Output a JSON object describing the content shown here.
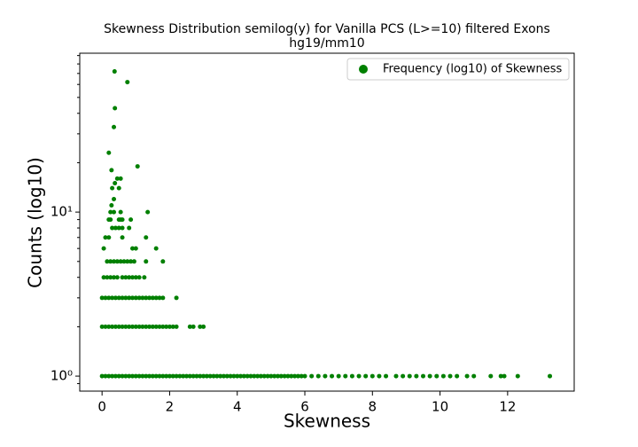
{
  "chart_data": {
    "type": "scatter",
    "title": "Skewness Distribution semilog(y) for Vanilla PCS (L>=10) filtered Exons",
    "subtitle": "hg19/mm10",
    "x_label": "Skewness",
    "y_label": "Counts (log10)",
    "y_scale": "log",
    "legend_position": "upper right",
    "xlim": [
      -0.66,
      13.97
    ],
    "xticks": [
      0,
      2,
      4,
      6,
      8,
      10,
      12
    ],
    "ylim": [
      0.81,
      93
    ],
    "yticks": [
      {
        "value": 1,
        "label": "10⁰"
      },
      {
        "value": 10,
        "label": "10¹"
      }
    ],
    "yminorticks": [
      0.9,
      2,
      3,
      4,
      5,
      6,
      7,
      8,
      9,
      20,
      30,
      40,
      50,
      60,
      70,
      80,
      90
    ],
    "series": [
      {
        "name": "Frequency (log10) of Skewness",
        "color": "#008000",
        "x": [
          0,
          0.1,
          0.2,
          0.3,
          0.4,
          0.5,
          0.6,
          0.7,
          0.8,
          0.9,
          1,
          1.1,
          1.2,
          1.3,
          1.4,
          1.5,
          1.6,
          1.7,
          1.8,
          1.9,
          2,
          2.1,
          2.2,
          2.3,
          2.4,
          2.5,
          2.6,
          2.7,
          2.8,
          2.9,
          3,
          3.1,
          3.2,
          3.3,
          3.4,
          3.5,
          3.6,
          3.7,
          3.8,
          3.9,
          4,
          4.1,
          4.2,
          4.3,
          4.4,
          4.5,
          4.6,
          4.7,
          4.8,
          4.9,
          5,
          5.1,
          5.2,
          5.3,
          5.4,
          5.5,
          5.6,
          5.7,
          5.8,
          5.9,
          6,
          6.2,
          6.4,
          6.6,
          6.8,
          7,
          7.2,
          7.4,
          7.6,
          7.8,
          8,
          8.2,
          8.4,
          8.7,
          8.9,
          9.1,
          9.3,
          9.5,
          9.7,
          9.9,
          10.1,
          10.3,
          10.5,
          10.8,
          11,
          11.5,
          11.8,
          11.9,
          12.3,
          13.25,
          0,
          0.1,
          0.2,
          0.3,
          0.4,
          0.5,
          0.6,
          0.7,
          0.8,
          0.9,
          1,
          1.1,
          1.2,
          1.3,
          1.4,
          1.5,
          1.6,
          1.7,
          1.8,
          1.9,
          2,
          2.1,
          2.2,
          2.6,
          2.7,
          2.9,
          3,
          0,
          0.1,
          0.2,
          0.3,
          0.4,
          0.5,
          0.6,
          0.7,
          0.8,
          0.9,
          1,
          1.1,
          1.2,
          1.3,
          1.4,
          1.5,
          1.6,
          1.7,
          1.8,
          2.2,
          0.05,
          0.15,
          0.25,
          0.35,
          0.45,
          0.6,
          0.7,
          0.8,
          0.9,
          1,
          1.1,
          1.25,
          0.15,
          0.25,
          0.35,
          0.45,
          0.55,
          0.65,
          0.75,
          0.85,
          0.95,
          1.3,
          1.8,
          0.05,
          0.9,
          1,
          1.6,
          0.1,
          0.2,
          0.6,
          1.3,
          0.3,
          0.4,
          0.5,
          0.6,
          0.8,
          0.2,
          0.25,
          0.5,
          0.55,
          0.6,
          0.85,
          0.25,
          0.35,
          0.55,
          1.35,
          0.28,
          0.35,
          0.3,
          0.5,
          0.38,
          0.45,
          0.55,
          0.28,
          1.05,
          0.2,
          0.35,
          0.38,
          0.75,
          0.37
        ],
        "values": [
          1,
          1,
          1,
          1,
          1,
          1,
          1,
          1,
          1,
          1,
          1,
          1,
          1,
          1,
          1,
          1,
          1,
          1,
          1,
          1,
          1,
          1,
          1,
          1,
          1,
          1,
          1,
          1,
          1,
          1,
          1,
          1,
          1,
          1,
          1,
          1,
          1,
          1,
          1,
          1,
          1,
          1,
          1,
          1,
          1,
          1,
          1,
          1,
          1,
          1,
          1,
          1,
          1,
          1,
          1,
          1,
          1,
          1,
          1,
          1,
          1,
          1,
          1,
          1,
          1,
          1,
          1,
          1,
          1,
          1,
          1,
          1,
          1,
          1,
          1,
          1,
          1,
          1,
          1,
          1,
          1,
          1,
          1,
          1,
          1,
          1,
          1,
          1,
          1,
          1,
          2,
          2,
          2,
          2,
          2,
          2,
          2,
          2,
          2,
          2,
          2,
          2,
          2,
          2,
          2,
          2,
          2,
          2,
          2,
          2,
          2,
          2,
          2,
          2,
          2,
          2,
          2,
          3,
          3,
          3,
          3,
          3,
          3,
          3,
          3,
          3,
          3,
          3,
          3,
          3,
          3,
          3,
          3,
          3,
          3,
          3,
          3,
          4,
          4,
          4,
          4,
          4,
          4,
          4,
          4,
          4,
          4,
          4,
          4,
          5,
          5,
          5,
          5,
          5,
          5,
          5,
          5,
          5,
          5,
          5,
          6,
          6,
          6,
          6,
          7,
          7,
          7,
          7,
          8,
          8,
          8,
          8,
          8,
          9,
          9,
          9,
          9,
          9,
          9,
          10,
          10,
          10,
          10,
          11,
          12,
          14,
          14,
          15,
          16,
          16,
          18,
          19,
          23,
          33,
          43,
          62,
          72
        ]
      }
    ]
  }
}
